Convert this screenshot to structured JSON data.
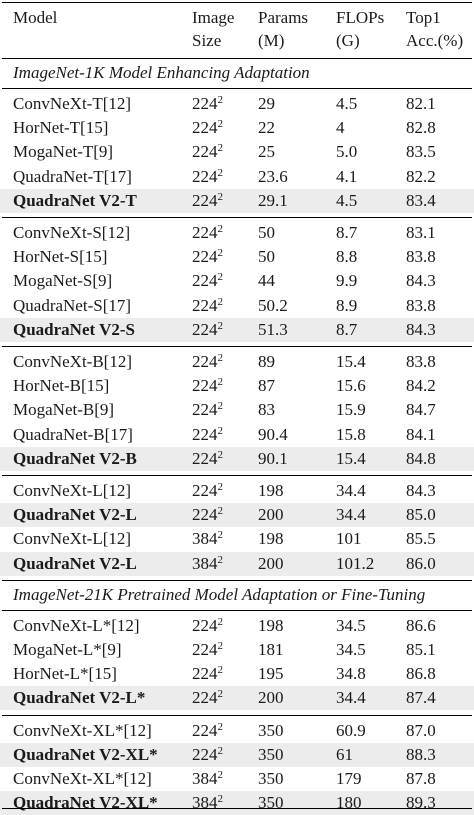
{
  "header": {
    "model": "Model",
    "size_line1": "Image",
    "size_line2": "Size",
    "params_line1": "Params",
    "params_line2": "(M)",
    "flops_line1": "FLOPs",
    "flops_line2": "(G)",
    "top1_line1": "Top1",
    "top1_line2": "Acc.(%)"
  },
  "sections": [
    {
      "title": "ImageNet-1K Model Enhancing Adaptation",
      "groups": [
        [
          {
            "model": "ConvNeXt-T[12]",
            "size": "224",
            "params": "29",
            "flops": "4.5",
            "top1": "82.1",
            "bold": false
          },
          {
            "model": "HorNet-T[15]",
            "size": "224",
            "params": "22",
            "flops": "4",
            "top1": "82.8",
            "bold": false
          },
          {
            "model": "MogaNet-T[9]",
            "size": "224",
            "params": "25",
            "flops": "5.0",
            "top1": "83.5",
            "bold": false
          },
          {
            "model": "QuadraNet-T[17]",
            "size": "224",
            "params": "23.6",
            "flops": "4.1",
            "top1": "82.2",
            "bold": false
          },
          {
            "model": "QuadraNet V2-T",
            "size": "224",
            "params": "29.1",
            "flops": "4.5",
            "top1": "83.4",
            "bold": true
          }
        ],
        [
          {
            "model": "ConvNeXt-S[12]",
            "size": "224",
            "params": "50",
            "flops": "8.7",
            "top1": "83.1",
            "bold": false
          },
          {
            "model": "HorNet-S[15]",
            "size": "224",
            "params": "50",
            "flops": "8.8",
            "top1": "83.8",
            "bold": false
          },
          {
            "model": "MogaNet-S[9]",
            "size": "224",
            "params": "44",
            "flops": "9.9",
            "top1": "84.3",
            "bold": false
          },
          {
            "model": "QuadraNet-S[17]",
            "size": "224",
            "params": "50.2",
            "flops": "8.9",
            "top1": "83.8",
            "bold": false
          },
          {
            "model": "QuadraNet V2-S",
            "size": "224",
            "params": "51.3",
            "flops": "8.7",
            "top1": "84.3",
            "bold": true
          }
        ],
        [
          {
            "model": "ConvNeXt-B[12]",
            "size": "224",
            "params": "89",
            "flops": "15.4",
            "top1": "83.8",
            "bold": false
          },
          {
            "model": "HorNet-B[15]",
            "size": "224",
            "params": "87",
            "flops": "15.6",
            "top1": "84.2",
            "bold": false
          },
          {
            "model": "MogaNet-B[9]",
            "size": "224",
            "params": "83",
            "flops": "15.9",
            "top1": "84.7",
            "bold": false
          },
          {
            "model": "QuadraNet-B[17]",
            "size": "224",
            "params": "90.4",
            "flops": "15.8",
            "top1": "84.1",
            "bold": false
          },
          {
            "model": "QuadraNet V2-B",
            "size": "224",
            "params": "90.1",
            "flops": "15.4",
            "top1": "84.8",
            "bold": true
          }
        ],
        [
          {
            "model": "ConvNeXt-L[12]",
            "size": "224",
            "params": "198",
            "flops": "34.4",
            "top1": "84.3",
            "bold": false
          },
          {
            "model": "QuadraNet V2-L",
            "size": "224",
            "params": "200",
            "flops": "34.4",
            "top1": "85.0",
            "bold": true
          },
          {
            "model": "ConvNeXt-L[12]",
            "size": "384",
            "params": "198",
            "flops": "101",
            "top1": "85.5",
            "bold": false
          },
          {
            "model": "QuadraNet V2-L",
            "size": "384",
            "params": "200",
            "flops": "101.2",
            "top1": "86.0",
            "bold": true
          }
        ]
      ]
    },
    {
      "title": "ImageNet-21K Pretrained Model Adaptation or Fine-Tuning",
      "groups": [
        [
          {
            "model": "ConvNeXt-L*[12]",
            "size": "224",
            "params": "198",
            "flops": "34.5",
            "top1": "86.6",
            "bold": false
          },
          {
            "model": "MogaNet-L*[9]",
            "size": "224",
            "params": "181",
            "flops": "34.5",
            "top1": "85.1",
            "bold": false
          },
          {
            "model": "HorNet-L*[15]",
            "size": "224",
            "params": "195",
            "flops": "34.8",
            "top1": "86.8",
            "bold": false
          },
          {
            "model": "QuadraNet V2-L*",
            "size": "224",
            "params": "200",
            "flops": "34.4",
            "top1": "87.4",
            "bold": true
          }
        ],
        [
          {
            "model": "ConvNeXt-XL*[12]",
            "size": "224",
            "params": "350",
            "flops": "60.9",
            "top1": "87.0",
            "bold": false
          },
          {
            "model": "QuadraNet V2-XL*",
            "size": "224",
            "params": "350",
            "flops": "61",
            "top1": "88.3",
            "bold": true
          },
          {
            "model": "ConvNeXt-XL*[12]",
            "size": "384",
            "params": "350",
            "flops": "179",
            "top1": "87.8",
            "bold": false
          },
          {
            "model": "QuadraNet V2-XL*",
            "size": "384",
            "params": "350",
            "flops": "180",
            "top1": "89.3",
            "bold": true
          }
        ]
      ]
    }
  ],
  "size_exponent": "2"
}
